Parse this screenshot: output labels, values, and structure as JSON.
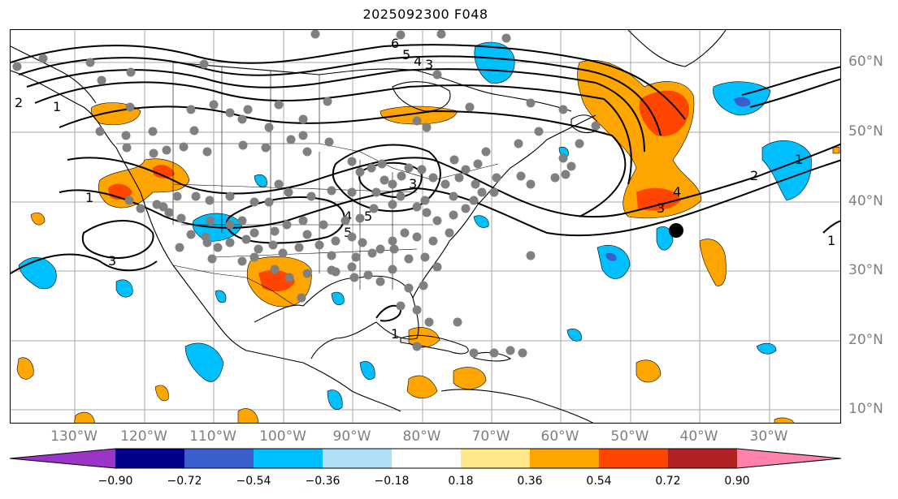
{
  "title": "2025092300 F048",
  "lon_labels": [
    "130°W",
    "120°W",
    "110°W",
    "100°W",
    "90°W",
    "80°W",
    "70°W",
    "60°W",
    "50°W",
    "40°W",
    "30°W"
  ],
  "lat_labels": [
    "60°N",
    "50°N",
    "40°N",
    "30°N",
    "20°N",
    "10°N"
  ],
  "colorbar": {
    "tick_labels": [
      "−0.90",
      "−0.72",
      "−0.54",
      "−0.36",
      "−0.18",
      "0.18",
      "0.36",
      "0.54",
      "0.72",
      "0.90"
    ],
    "colors": [
      "#9a35c8",
      "#00008b",
      "#3a5fcd",
      "#00bfff",
      "#b0e0f8",
      "#ffffff",
      "#ffe88a",
      "#ffa500",
      "#ff4500",
      "#b22222",
      "#ff82ab"
    ]
  },
  "contour_labels": [
    "6",
    "5",
    "4",
    "3",
    "5",
    "1",
    "1",
    "3",
    "2",
    "4",
    "3",
    "1",
    "1",
    "3",
    "5",
    "4",
    "2",
    "1"
  ],
  "legend_colors": {
    "station_dot": "#808080",
    "marker_dot": "#000000",
    "contour": "#000000"
  }
}
